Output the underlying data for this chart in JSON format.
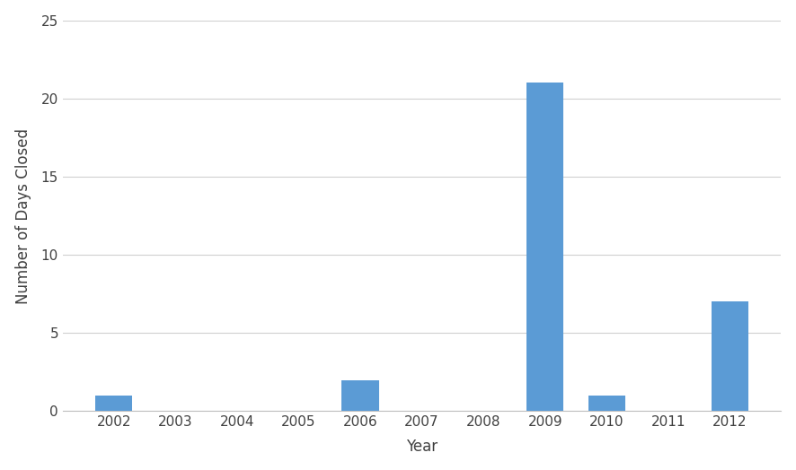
{
  "years": [
    2002,
    2003,
    2004,
    2005,
    2006,
    2007,
    2008,
    2009,
    2010,
    2011,
    2012
  ],
  "values": [
    1,
    0,
    0,
    0,
    2,
    0,
    0,
    21,
    1,
    0,
    7
  ],
  "bar_color": "#5b9bd5",
  "xlabel": "Year",
  "ylabel": "Number of Days Closed",
  "ylim": [
    0,
    25
  ],
  "yticks": [
    0,
    5,
    10,
    15,
    20,
    25
  ],
  "background_color": "#ffffff",
  "grid_color": "#d0d0d0",
  "bar_width": 0.6
}
